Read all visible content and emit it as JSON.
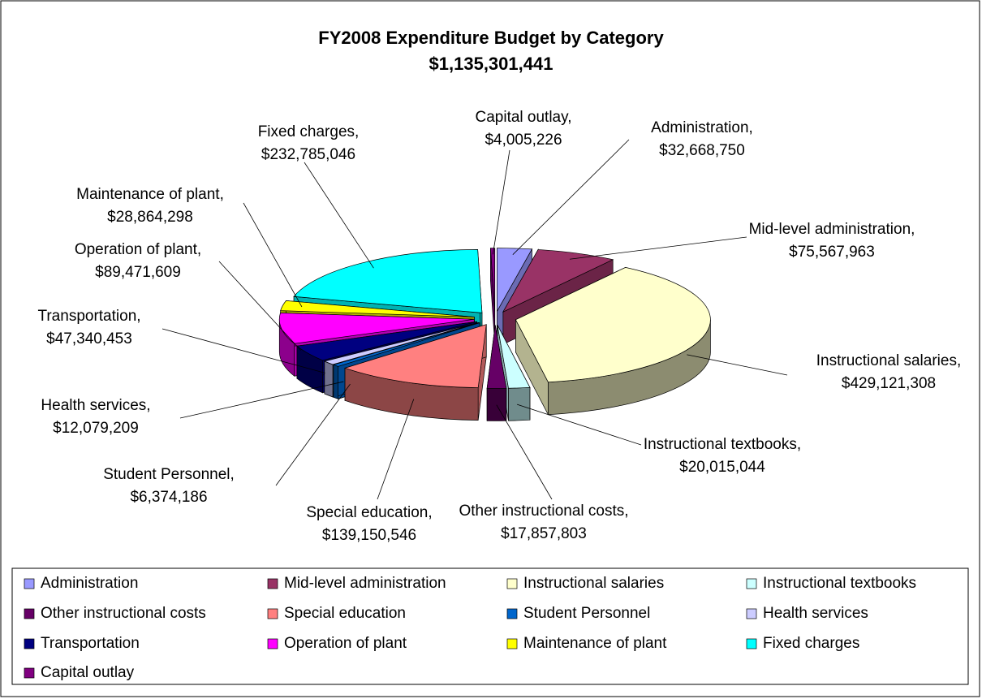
{
  "chart_data": {
    "type": "pie",
    "title": "FY2008 Expenditure Budget by Category",
    "subtitle": "$1,135,301,441",
    "label_separator": ",",
    "categories": [
      "Administration",
      "Mid-level administration",
      "Instructional salaries",
      "Instructional textbooks",
      "Other instructional costs",
      "Special education",
      "Student Personnel",
      "Health services",
      "Transportation",
      "Operation of plant",
      "Maintenance of plant",
      "Fixed charges",
      "Capital outlay"
    ],
    "values": [
      32668750,
      75567963,
      429121308,
      20015044,
      17857803,
      139150546,
      6374186,
      12079209,
      47340453,
      89471609,
      28864298,
      232785046,
      4005226
    ],
    "value_labels": [
      "$32,668,750",
      "$75,567,963",
      "$429,121,308",
      "$20,015,044",
      "$17,857,803",
      "$139,150,546",
      "$6,374,186",
      "$12,079,209",
      "$47,340,453",
      "$89,471,609",
      "$28,864,298",
      "$232,785,046",
      "$4,005,226"
    ],
    "colors": [
      "#9999ff",
      "#993366",
      "#ffffcc",
      "#ccffff",
      "#660066",
      "#ff8080",
      "#0066cc",
      "#ccccff",
      "#000080",
      "#ff00ff",
      "#ffff00",
      "#00ffff",
      "#800080"
    ],
    "legend": "bottom"
  }
}
